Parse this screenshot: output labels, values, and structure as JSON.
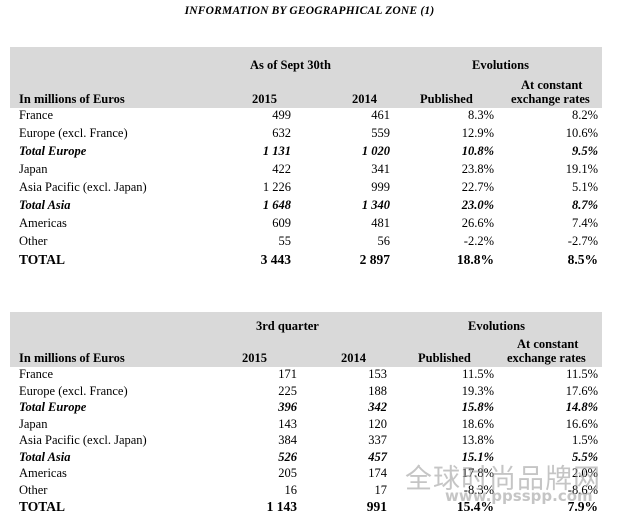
{
  "title": "INFORMATION BY GEOGRAPHICAL ZONE (1)",
  "tables": [
    {
      "period_label": "As of Sept 30th",
      "evolutions_label": "Evolutions",
      "unit_label": "In millions of Euros",
      "col_2015": "2015",
      "col_2014": "2014",
      "col_published": "Published",
      "col_constant_line1": "At constant",
      "col_constant_line2": "exchange rates",
      "rows": [
        {
          "label": "France",
          "v2015": "499",
          "v2014": "461",
          "published": "8.3%",
          "constant": "8.2%",
          "style": "normal"
        },
        {
          "label": "Europe (excl. France)",
          "v2015": "632",
          "v2014": "559",
          "published": "12.9%",
          "constant": "10.6%",
          "style": "normal"
        },
        {
          "label": "Total Europe",
          "v2015": "1 131",
          "v2014": "1 020",
          "published": "10.8%",
          "constant": "9.5%",
          "style": "bi"
        },
        {
          "label": "Japan",
          "v2015": "422",
          "v2014": "341",
          "published": "23.8%",
          "constant": "19.1%",
          "style": "normal"
        },
        {
          "label": "Asia Pacific (excl. Japan)",
          "v2015": "1 226",
          "v2014": "999",
          "published": "22.7%",
          "constant": "5.1%",
          "style": "normal"
        },
        {
          "label": "Total Asia",
          "v2015": "1 648",
          "v2014": "1 340",
          "published": "23.0%",
          "constant": "8.7%",
          "style": "bi"
        },
        {
          "label": "Americas",
          "v2015": "609",
          "v2014": "481",
          "published": "26.6%",
          "constant": "7.4%",
          "style": "normal"
        },
        {
          "label": "Other",
          "v2015": "55",
          "v2014": "56",
          "published": "-2.2%",
          "constant": "-2.7%",
          "style": "normal"
        },
        {
          "label": "TOTAL",
          "v2015": "3 443",
          "v2014": "2 897",
          "published": "18.8%",
          "constant": "8.5%",
          "style": "total"
        }
      ]
    },
    {
      "period_label": "3rd quarter",
      "evolutions_label": "Evolutions",
      "unit_label": "In millions of Euros",
      "col_2015": "2015",
      "col_2014": "2014",
      "col_published": "Published",
      "col_constant_line1": "At constant",
      "col_constant_line2": "exchange rates",
      "rows": [
        {
          "label": "France",
          "v2015": "171",
          "v2014": "153",
          "published": "11.5%",
          "constant": "11.5%",
          "style": "normal"
        },
        {
          "label": "Europe (excl. France)",
          "v2015": "225",
          "v2014": "188",
          "published": "19.3%",
          "constant": "17.6%",
          "style": "normal"
        },
        {
          "label": "Total Europe",
          "v2015": "396",
          "v2014": "342",
          "published": "15.8%",
          "constant": "14.8%",
          "style": "bi"
        },
        {
          "label": "Japan",
          "v2015": "143",
          "v2014": "120",
          "published": "18.6%",
          "constant": "16.6%",
          "style": "normal"
        },
        {
          "label": "Asia Pacific (excl. Japan)",
          "v2015": "384",
          "v2014": "337",
          "published": "13.8%",
          "constant": "1.5%",
          "style": "normal"
        },
        {
          "label": "Total Asia",
          "v2015": "526",
          "v2014": "457",
          "published": "15.1%",
          "constant": "5.5%",
          "style": "bi"
        },
        {
          "label": "Americas",
          "v2015": "205",
          "v2014": "174",
          "published": "17.8%",
          "constant": "2.0%",
          "style": "normal"
        },
        {
          "label": "Other",
          "v2015": "16",
          "v2014": "17",
          "published": "-8.3%",
          "constant": "-8.6%",
          "style": "normal"
        },
        {
          "label": "TOTAL",
          "v2015": "1 143",
          "v2014": "991",
          "published": "15.4%",
          "constant": "7.9%",
          "style": "total"
        }
      ]
    }
  ],
  "watermark": {
    "line1": "全球时尚品牌网",
    "line2": "www.ppsspp.com"
  }
}
